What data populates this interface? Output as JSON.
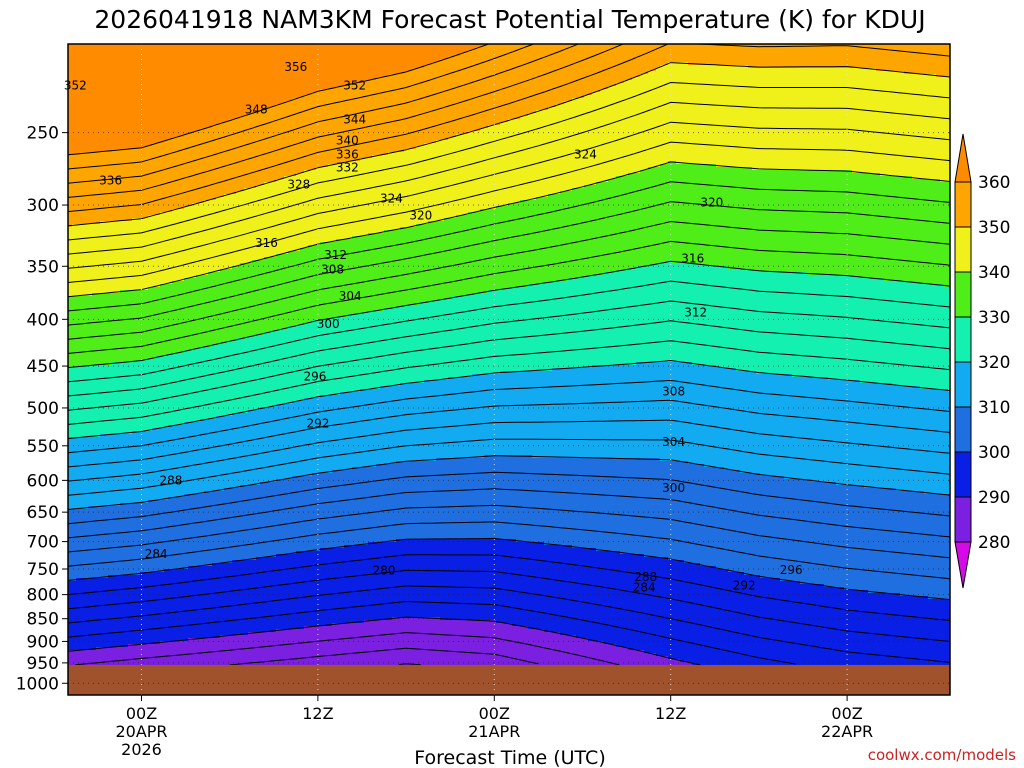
{
  "chart_data": {
    "type": "heatmap",
    "title": "2026041918 NAM3KM Forecast Potential Temperature (K) for KDUJ",
    "xlabel": "Forecast Time (UTC)",
    "ylabel": "",
    "y_ticks": [
      "250",
      "300",
      "350",
      "400",
      "450",
      "500",
      "550",
      "600",
      "650",
      "700",
      "750",
      "800",
      "850",
      "900",
      "950",
      "1000"
    ],
    "y_tick_values": [
      250,
      300,
      350,
      400,
      450,
      500,
      550,
      600,
      650,
      700,
      750,
      800,
      850,
      900,
      950,
      1000
    ],
    "y_range_hpa": [
      200,
      1030
    ],
    "x_range_hours": [
      -5,
      55
    ],
    "x_ticks": [
      {
        "hour": 0,
        "line1": "00Z",
        "line2": "20APR",
        "line3": "2026"
      },
      {
        "hour": 12,
        "line1": "12Z",
        "line2": "",
        "line3": ""
      },
      {
        "hour": 24,
        "line1": "00Z",
        "line2": "21APR",
        "line3": ""
      },
      {
        "hour": 36,
        "line1": "12Z",
        "line2": "",
        "line3": ""
      },
      {
        "hour": 48,
        "line1": "00Z",
        "line2": "22APR",
        "line3": ""
      }
    ],
    "colorbar": {
      "labels": [
        "360",
        "350",
        "340",
        "330",
        "320",
        "310",
        "300",
        "290",
        "280"
      ],
      "bins": [
        {
          "max": 290,
          "color": "#7b1fe0"
        },
        {
          "max": 300,
          "color": "#0a1fe6"
        },
        {
          "max": 310,
          "color": "#1f6fe0"
        },
        {
          "max": 320,
          "color": "#12aaf0"
        },
        {
          "max": 330,
          "color": "#14f0b0"
        },
        {
          "max": 340,
          "color": "#50ee18"
        },
        {
          "max": 350,
          "color": "#f0f01a"
        },
        {
          "max": 360,
          "color": "#ffa500"
        }
      ],
      "low_color": "#d60ae8",
      "high_color": "#ff8c00"
    },
    "ground_color": "#a0522d",
    "surface_hpa": 955,
    "isotherm_step_k": 2,
    "profile_model": "theta(hour, p) = base + s*log(1000/p), base/s interpolated over hour anchors",
    "profile_anchors": [
      {
        "hour": -5,
        "base": 285.5,
        "s": 56
      },
      {
        "hour": 0,
        "base": 284.5,
        "s": 56
      },
      {
        "hour": 6,
        "base": 283.5,
        "s": 54
      },
      {
        "hour": 12,
        "base": 282.5,
        "s": 52
      },
      {
        "hour": 18,
        "base": 281.5,
        "s": 51
      },
      {
        "hour": 24,
        "base": 282.5,
        "s": 48
      },
      {
        "hour": 30,
        "base": 285.0,
        "s": 44
      },
      {
        "hour": 36,
        "base": 287.5,
        "s": 40
      },
      {
        "hour": 42,
        "base": 289.5,
        "s": 39
      },
      {
        "hour": 48,
        "base": 291.0,
        "s": 38
      },
      {
        "hour": 55,
        "base": 292.0,
        "s": 38
      }
    ],
    "contour_labels": [
      {
        "text": "356",
        "hour": 10.5,
        "p": 212
      },
      {
        "text": "352",
        "hour": -4.5,
        "p": 222
      },
      {
        "text": "352",
        "hour": 14.5,
        "p": 222
      },
      {
        "text": "348",
        "hour": 7.8,
        "p": 236
      },
      {
        "text": "344",
        "hour": 14.5,
        "p": 242
      },
      {
        "text": "340",
        "hour": 14,
        "p": 255
      },
      {
        "text": "336",
        "hour": 14,
        "p": 264
      },
      {
        "text": "332",
        "hour": 14,
        "p": 273
      },
      {
        "text": "328",
        "hour": 10.7,
        "p": 285
      },
      {
        "text": "324",
        "hour": 17,
        "p": 295
      },
      {
        "text": "324",
        "hour": 30.2,
        "p": 264
      },
      {
        "text": "320",
        "hour": 19,
        "p": 308
      },
      {
        "text": "320",
        "hour": 38.8,
        "p": 298
      },
      {
        "text": "336",
        "hour": -2.1,
        "p": 282
      },
      {
        "text": "316",
        "hour": 8.5,
        "p": 330
      },
      {
        "text": "316",
        "hour": 37.5,
        "p": 343
      },
      {
        "text": "312",
        "hour": 13.2,
        "p": 340
      },
      {
        "text": "308",
        "hour": 13,
        "p": 353
      },
      {
        "text": "304",
        "hour": 14.2,
        "p": 377
      },
      {
        "text": "312",
        "hour": 37.7,
        "p": 393
      },
      {
        "text": "300",
        "hour": 12.7,
        "p": 405
      },
      {
        "text": "296",
        "hour": 11.8,
        "p": 462
      },
      {
        "text": "308",
        "hour": 36.2,
        "p": 480
      },
      {
        "text": "292",
        "hour": 12,
        "p": 520
      },
      {
        "text": "304",
        "hour": 36.2,
        "p": 545
      },
      {
        "text": "288",
        "hour": 2,
        "p": 600
      },
      {
        "text": "300",
        "hour": 36.2,
        "p": 612
      },
      {
        "text": "284",
        "hour": 1,
        "p": 722
      },
      {
        "text": "280",
        "hour": 16.5,
        "p": 753
      },
      {
        "text": "288",
        "hour": 34.3,
        "p": 765
      },
      {
        "text": "284",
        "hour": 34.2,
        "p": 786
      },
      {
        "text": "296",
        "hour": 44.2,
        "p": 752
      },
      {
        "text": "292",
        "hour": 41,
        "p": 782
      }
    ]
  },
  "credit": "coolwx.com/models"
}
